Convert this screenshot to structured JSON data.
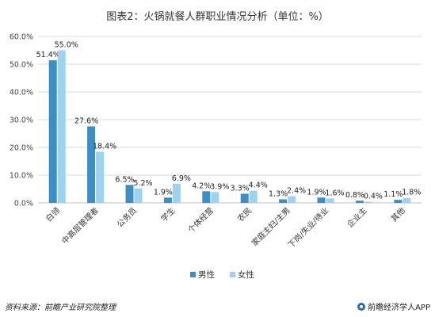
{
  "title": "图表2：火锅就餐人群职业情况分析（单位：%）",
  "source": "资料来源：前瞻产业研究院整理",
  "brand": "前瞻经济学人APP",
  "colors": {
    "male": "#3b8fc7",
    "female": "#9dd3f2",
    "grid": "#d9d9d9",
    "axis": "#bfbfbf"
  },
  "chart_data": {
    "type": "bar",
    "title": "图表2：火锅就餐人群职业情况分析（单位：%）",
    "categories": [
      "白领",
      "中高层管理者",
      "公务员",
      "学生",
      "个体经营",
      "农民",
      "家庭主妇/主男",
      "下岗/失业/待业",
      "企业主",
      "其他"
    ],
    "series": [
      {
        "name": "男性",
        "values": [
          51.4,
          27.6,
          6.5,
          1.9,
          4.2,
          3.3,
          1.3,
          1.9,
          0.8,
          1.1
        ],
        "labels": [
          "51.4%",
          "27.6%",
          "6.5%",
          "1.9%",
          "4.2%",
          "3.3%",
          "1.3%",
          "1.9%",
          "0.8%",
          "1.1%"
        ]
      },
      {
        "name": "女性",
        "values": [
          55.0,
          18.4,
          5.2,
          6.9,
          3.9,
          4.4,
          2.4,
          1.6,
          0.4,
          1.8
        ],
        "labels": [
          "55.0%",
          "18.4%",
          "5.2%",
          "6.9%",
          "3.9%",
          "4.4%",
          "2.4%",
          "1.6%",
          "0.4%",
          "1.8%"
        ]
      }
    ],
    "yticks": [
      "0.0%",
      "10.0%",
      "20.0%",
      "30.0%",
      "40.0%",
      "50.0%",
      "60.0%"
    ],
    "ylim": [
      0,
      60
    ],
    "grid": true,
    "legend": "bottom-center"
  }
}
